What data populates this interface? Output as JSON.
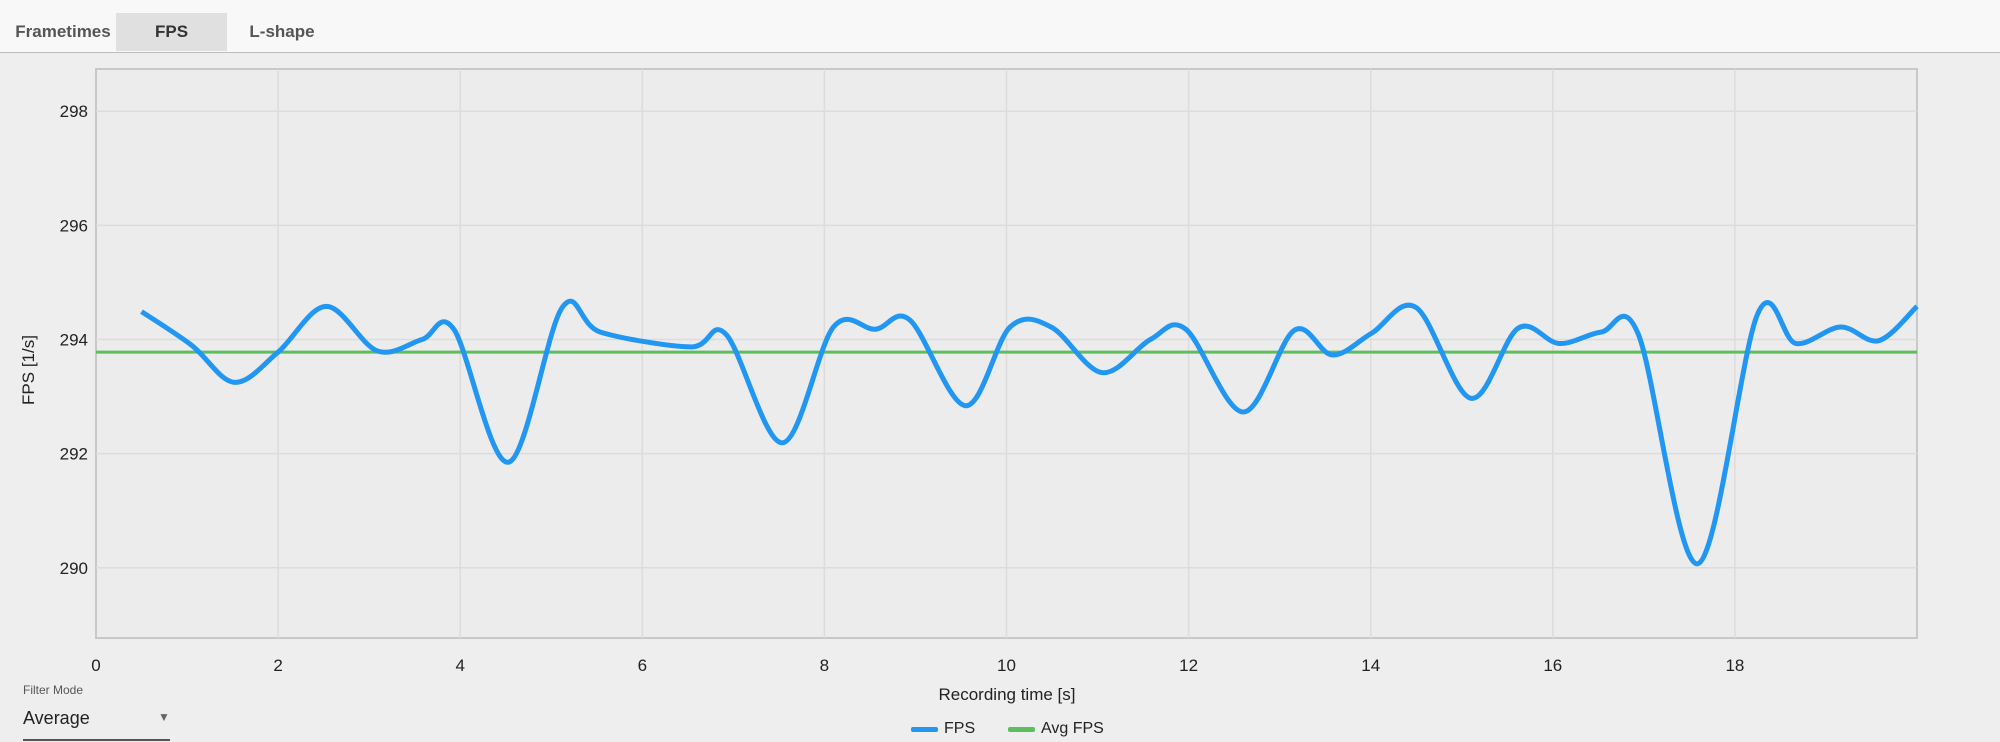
{
  "tabs": [
    {
      "label": "Frametimes",
      "active": false
    },
    {
      "label": "FPS",
      "active": true
    },
    {
      "label": "L-shape",
      "active": false
    }
  ],
  "filter": {
    "label": "Filter Mode",
    "value": "Average"
  },
  "colors": {
    "fps": "#2196F3",
    "avg": "#5CBF5C",
    "plot_bg": "#ECECEC",
    "grid": "#DCDCDC"
  },
  "chart_data": {
    "type": "line",
    "xlabel": "Recording time [s]",
    "ylabel": "FPS [1/s]",
    "xlim": [
      0,
      20
    ],
    "ylim": [
      288.77,
      298.74
    ],
    "xticks": [
      0,
      2,
      4,
      6,
      8,
      10,
      12,
      14,
      16,
      18
    ],
    "yticks": [
      290,
      292,
      294,
      296,
      298
    ],
    "grid": true,
    "legend": "bottom-center",
    "series": [
      {
        "name": "FPS",
        "x": [
          0.5,
          1.05,
          1.52,
          2.0,
          2.53,
          3.09,
          3.58,
          3.93,
          4.53,
          5.12,
          5.54,
          6.53,
          6.92,
          7.54,
          8.1,
          8.56,
          8.94,
          9.55,
          10.04,
          10.49,
          11.05,
          11.58,
          11.97,
          12.6,
          13.16,
          13.58,
          14.01,
          14.5,
          15.1,
          15.62,
          16.07,
          16.53,
          16.94,
          17.59,
          18.25,
          18.67,
          19.16,
          19.58,
          20.03
        ],
        "y": [
          294.49,
          293.9,
          293.25,
          293.78,
          294.58,
          293.8,
          294.0,
          294.18,
          291.85,
          294.56,
          294.13,
          293.87,
          294.09,
          292.19,
          294.22,
          294.18,
          294.34,
          292.84,
          294.22,
          294.22,
          293.42,
          294.0,
          294.18,
          292.73,
          294.16,
          293.73,
          294.11,
          294.56,
          292.97,
          294.2,
          293.93,
          294.13,
          294.09,
          290.07,
          294.45,
          293.93,
          294.22,
          293.98,
          294.58
        ]
      },
      {
        "name": "Avg FPS",
        "value": 293.78
      }
    ]
  }
}
